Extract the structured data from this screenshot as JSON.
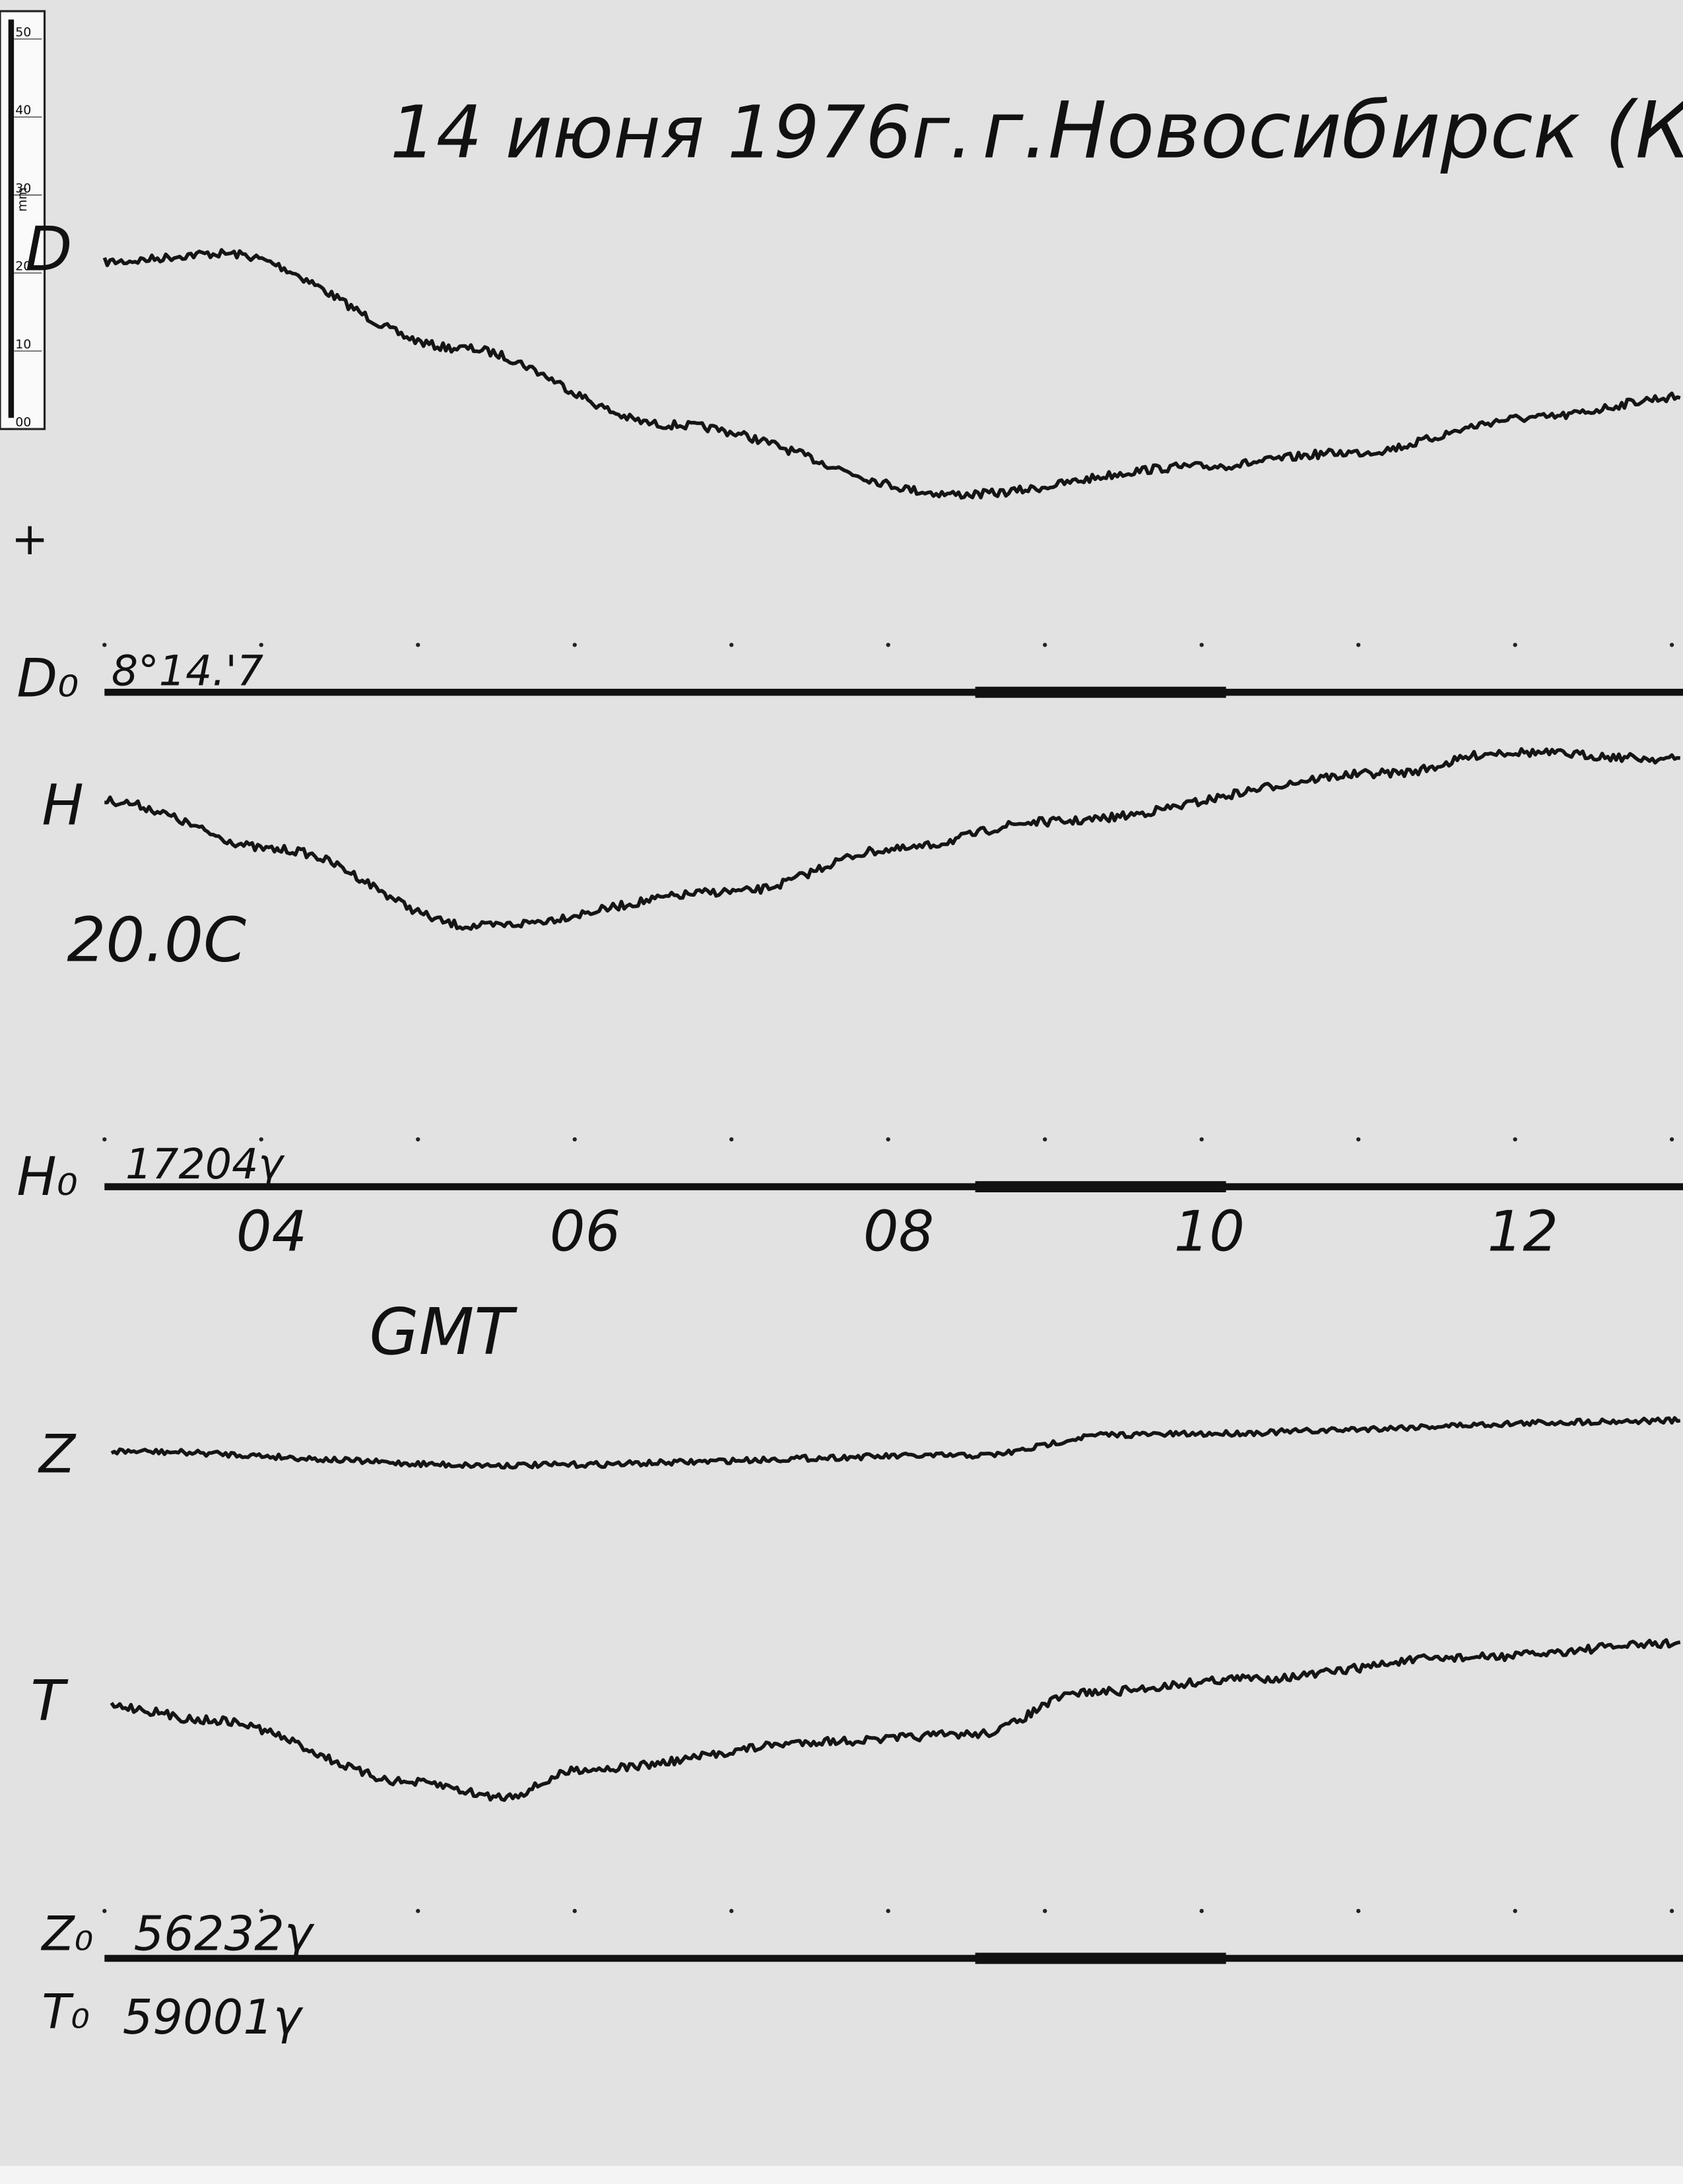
{
  "header": {
    "date": "14 июня 1976г.",
    "place": "г.Новосибирск (Клю"
  },
  "ruler": {
    "unit": "mm",
    "marks": [
      "50",
      "40",
      "30",
      "20",
      "10",
      "00"
    ]
  },
  "polarity": "+",
  "traces": {
    "d": {
      "label": "D",
      "baseline_label": "D₀",
      "baseline_value": "8°14.'7"
    },
    "h": {
      "label": "H",
      "temperature": "20.0C",
      "baseline_label": "H₀",
      "baseline_value": "17204γ"
    },
    "z": {
      "label": "Z",
      "baseline_label": "Z₀",
      "baseline_value": "56232γ"
    },
    "t": {
      "label": "T",
      "baseline_label": "T₀",
      "baseline_value": "59001γ"
    }
  },
  "time_axis": {
    "ticks": [
      "04",
      "06",
      "08",
      "10",
      "12"
    ],
    "label": "GMT"
  }
}
